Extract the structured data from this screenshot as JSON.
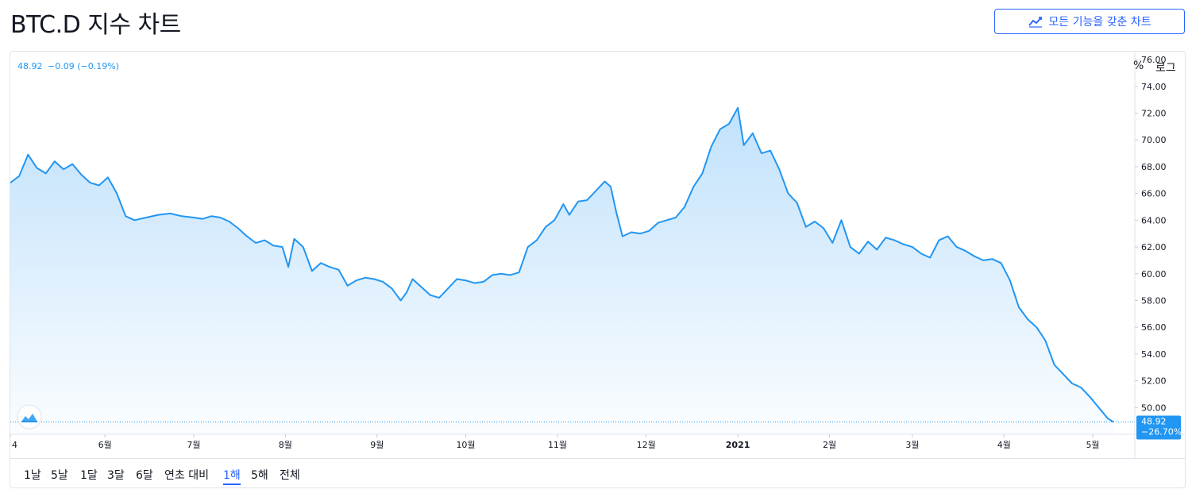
{
  "page": {
    "title": "BTC.D 지수 차트",
    "full_chart_button": "모든 기능을 갖춘 차트"
  },
  "legend": {
    "value": "48.92",
    "change": "−0.09 (−0.19%)"
  },
  "price_tag": {
    "value": "48.92",
    "change": "−26.70%"
  },
  "colors": {
    "line": "#2196f3",
    "accent": "#2962ff",
    "tag_bg": "#2196f3"
  },
  "range_buttons": [
    "1날",
    "5날",
    "1달",
    "3달",
    "6달",
    "연초 대비",
    "1해",
    "5해",
    "전체"
  ],
  "active_range": "1해",
  "scale_buttons": {
    "percent": "%",
    "log": "로그"
  },
  "chart_data": {
    "type": "area",
    "title": "BTC.D 지수 차트",
    "y_range": [
      48,
      76.6
    ],
    "y_ticks": [
      50,
      52,
      54,
      56,
      58,
      60,
      62,
      64,
      66,
      68,
      70,
      72,
      74,
      76
    ],
    "y_tick_labels": [
      "50.00",
      "52.00",
      "54.00",
      "56.00",
      "58.00",
      "60.00",
      "62.00",
      "64.00",
      "66.00",
      "68.00",
      "70.00",
      "72.00",
      "74.00",
      "76.00"
    ],
    "x_range": [
      "2020-04-30",
      "2021-05-12"
    ],
    "x_ticks": [
      {
        "label": "4",
        "date": "2020-04-30"
      },
      {
        "label": "6월",
        "date": "2020-06-01"
      },
      {
        "label": "7월",
        "date": "2020-07-01"
      },
      {
        "label": "8월",
        "date": "2020-08-01"
      },
      {
        "label": "9월",
        "date": "2020-09-01"
      },
      {
        "label": "10월",
        "date": "2020-10-01"
      },
      {
        "label": "11월",
        "date": "2020-11-01"
      },
      {
        "label": "12월",
        "date": "2020-12-01"
      },
      {
        "label": "2021",
        "date": "2021-01-01",
        "bold": true
      },
      {
        "label": "2월",
        "date": "2021-02-01"
      },
      {
        "label": "3월",
        "date": "2021-03-01"
      },
      {
        "label": "4월",
        "date": "2021-04-01"
      },
      {
        "label": "5월",
        "date": "2021-05-01"
      }
    ],
    "grid": false,
    "last_value": 48.92,
    "series": [
      {
        "points": [
          [
            "2020-04-30",
            66.8
          ],
          [
            "2020-05-03",
            67.3
          ],
          [
            "2020-05-06",
            68.9
          ],
          [
            "2020-05-09",
            67.9
          ],
          [
            "2020-05-12",
            67.5
          ],
          [
            "2020-05-15",
            68.4
          ],
          [
            "2020-05-18",
            67.8
          ],
          [
            "2020-05-21",
            68.2
          ],
          [
            "2020-05-24",
            67.4
          ],
          [
            "2020-05-27",
            66.8
          ],
          [
            "2020-05-30",
            66.6
          ],
          [
            "2020-06-02",
            67.2
          ],
          [
            "2020-06-05",
            66.0
          ],
          [
            "2020-06-08",
            64.3
          ],
          [
            "2020-06-11",
            64.0
          ],
          [
            "2020-06-15",
            64.2
          ],
          [
            "2020-06-19",
            64.4
          ],
          [
            "2020-06-23",
            64.5
          ],
          [
            "2020-06-27",
            64.3
          ],
          [
            "2020-07-01",
            64.2
          ],
          [
            "2020-07-04",
            64.1
          ],
          [
            "2020-07-07",
            64.3
          ],
          [
            "2020-07-10",
            64.2
          ],
          [
            "2020-07-13",
            63.9
          ],
          [
            "2020-07-16",
            63.4
          ],
          [
            "2020-07-19",
            62.8
          ],
          [
            "2020-07-22",
            62.3
          ],
          [
            "2020-07-25",
            62.5
          ],
          [
            "2020-07-28",
            62.1
          ],
          [
            "2020-07-31",
            62.0
          ],
          [
            "2020-08-02",
            60.5
          ],
          [
            "2020-08-04",
            62.6
          ],
          [
            "2020-08-07",
            62.0
          ],
          [
            "2020-08-10",
            60.2
          ],
          [
            "2020-08-13",
            60.8
          ],
          [
            "2020-08-16",
            60.5
          ],
          [
            "2020-08-19",
            60.3
          ],
          [
            "2020-08-22",
            59.1
          ],
          [
            "2020-08-25",
            59.5
          ],
          [
            "2020-08-28",
            59.7
          ],
          [
            "2020-08-31",
            59.6
          ],
          [
            "2020-09-03",
            59.4
          ],
          [
            "2020-09-06",
            58.9
          ],
          [
            "2020-09-09",
            58.0
          ],
          [
            "2020-09-11",
            58.6
          ],
          [
            "2020-09-13",
            59.6
          ],
          [
            "2020-09-16",
            59.0
          ],
          [
            "2020-09-19",
            58.4
          ],
          [
            "2020-09-22",
            58.2
          ],
          [
            "2020-09-25",
            58.9
          ],
          [
            "2020-09-28",
            59.6
          ],
          [
            "2020-10-01",
            59.5
          ],
          [
            "2020-10-04",
            59.3
          ],
          [
            "2020-10-07",
            59.4
          ],
          [
            "2020-10-10",
            59.9
          ],
          [
            "2020-10-13",
            60.0
          ],
          [
            "2020-10-16",
            59.9
          ],
          [
            "2020-10-19",
            60.1
          ],
          [
            "2020-10-22",
            62.0
          ],
          [
            "2020-10-25",
            62.5
          ],
          [
            "2020-10-28",
            63.5
          ],
          [
            "2020-10-31",
            64.0
          ],
          [
            "2020-11-03",
            65.2
          ],
          [
            "2020-11-05",
            64.4
          ],
          [
            "2020-11-08",
            65.4
          ],
          [
            "2020-11-11",
            65.5
          ],
          [
            "2020-11-14",
            66.2
          ],
          [
            "2020-11-17",
            66.9
          ],
          [
            "2020-11-19",
            66.5
          ],
          [
            "2020-11-21",
            64.5
          ],
          [
            "2020-11-23",
            62.8
          ],
          [
            "2020-11-26",
            63.1
          ],
          [
            "2020-11-29",
            63.0
          ],
          [
            "2020-12-02",
            63.2
          ],
          [
            "2020-12-05",
            63.8
          ],
          [
            "2020-12-08",
            64.0
          ],
          [
            "2020-12-11",
            64.2
          ],
          [
            "2020-12-14",
            65.0
          ],
          [
            "2020-12-17",
            66.5
          ],
          [
            "2020-12-20",
            67.5
          ],
          [
            "2020-12-23",
            69.5
          ],
          [
            "2020-12-26",
            70.8
          ],
          [
            "2020-12-29",
            71.2
          ],
          [
            "2021-01-01",
            72.4
          ],
          [
            "2021-01-03",
            69.6
          ],
          [
            "2021-01-06",
            70.5
          ],
          [
            "2021-01-09",
            69.0
          ],
          [
            "2021-01-12",
            69.2
          ],
          [
            "2021-01-15",
            67.8
          ],
          [
            "2021-01-18",
            66.0
          ],
          [
            "2021-01-21",
            65.3
          ],
          [
            "2021-01-24",
            63.5
          ],
          [
            "2021-01-27",
            63.9
          ],
          [
            "2021-01-30",
            63.4
          ],
          [
            "2021-02-02",
            62.3
          ],
          [
            "2021-02-05",
            64.0
          ],
          [
            "2021-02-08",
            62.0
          ],
          [
            "2021-02-11",
            61.5
          ],
          [
            "2021-02-14",
            62.4
          ],
          [
            "2021-02-17",
            61.8
          ],
          [
            "2021-02-20",
            62.7
          ],
          [
            "2021-02-23",
            62.5
          ],
          [
            "2021-02-26",
            62.2
          ],
          [
            "2021-03-01",
            62.0
          ],
          [
            "2021-03-04",
            61.5
          ],
          [
            "2021-03-07",
            61.2
          ],
          [
            "2021-03-10",
            62.5
          ],
          [
            "2021-03-13",
            62.8
          ],
          [
            "2021-03-16",
            62.0
          ],
          [
            "2021-03-19",
            61.7
          ],
          [
            "2021-03-22",
            61.3
          ],
          [
            "2021-03-25",
            61.0
          ],
          [
            "2021-03-28",
            61.1
          ],
          [
            "2021-03-31",
            60.8
          ],
          [
            "2021-04-03",
            59.5
          ],
          [
            "2021-04-06",
            57.5
          ],
          [
            "2021-04-09",
            56.6
          ],
          [
            "2021-04-12",
            56.0
          ],
          [
            "2021-04-15",
            55.0
          ],
          [
            "2021-04-18",
            53.2
          ],
          [
            "2021-04-21",
            52.5
          ],
          [
            "2021-04-24",
            51.8
          ],
          [
            "2021-04-27",
            51.5
          ],
          [
            "2021-04-30",
            50.8
          ],
          [
            "2021-05-03",
            50.0
          ],
          [
            "2021-05-06",
            49.2
          ],
          [
            "2021-05-08",
            48.92
          ]
        ]
      }
    ]
  }
}
